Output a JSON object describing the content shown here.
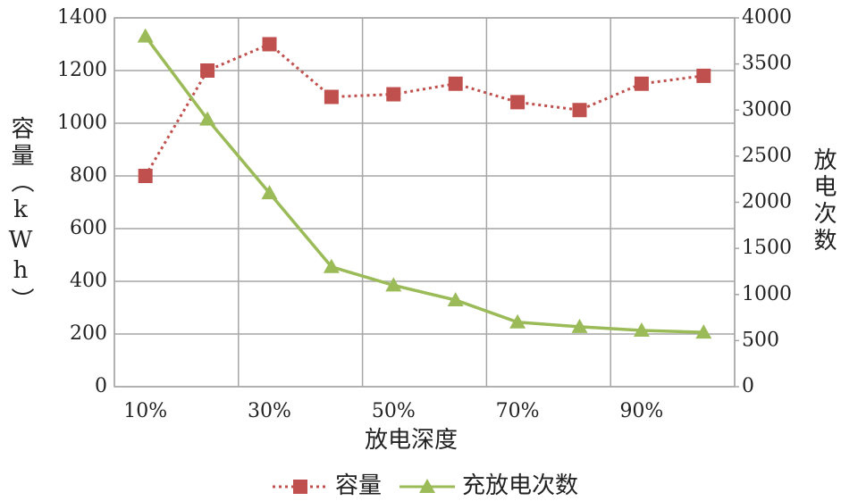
{
  "chart_data": {
    "type": "line",
    "categories": [
      "10%",
      null,
      "30%",
      null,
      "50%",
      null,
      "70%",
      null,
      "90%",
      null
    ],
    "x_label": "放电深度",
    "y_label": "容量（kWh）",
    "y2_label": "放电次数",
    "series": [
      {
        "name": "容量",
        "color": "#c0504d",
        "marker": "square",
        "line_style": "dotted",
        "values": [
          800,
          1200,
          1300,
          1100,
          1110,
          1150,
          1080,
          1050,
          1150,
          1180
        ]
      },
      {
        "name": "充放电次数",
        "color": "#9bbb59",
        "marker": "triangle",
        "line_style": "solid",
        "axis": "y2",
        "values": [
          3800,
          2900,
          2100,
          1300,
          1100,
          940,
          700,
          650,
          610,
          590
        ]
      }
    ],
    "ylim": [
      0,
      1400
    ],
    "yticks": [
      0,
      200,
      400,
      600,
      800,
      1000,
      1200,
      1400
    ],
    "y2lim": [
      0,
      4000
    ],
    "y2ticks": [
      0,
      500,
      1000,
      1500,
      2000,
      2500,
      3000,
      3500,
      4000
    ],
    "grid": true,
    "legend": "bottom"
  }
}
